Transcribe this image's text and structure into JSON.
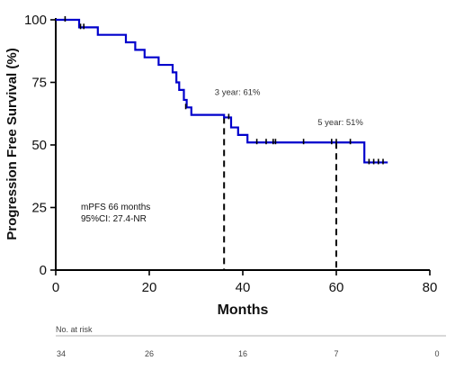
{
  "chart_data": {
    "type": "line",
    "subtype": "kaplan-meier",
    "title": "",
    "xlabel": "Months",
    "ylabel": "Progression Free Survival (%)",
    "xlim": [
      0,
      80
    ],
    "ylim": [
      0,
      100
    ],
    "x_ticks": [
      "0",
      "20",
      "40",
      "60",
      "80"
    ],
    "y_ticks": [
      "0",
      "25",
      "50",
      "75",
      "100"
    ],
    "grid": false,
    "series_color": "#0000cc",
    "steps": [
      {
        "x": 0,
        "y": 100
      },
      {
        "x": 5,
        "y": 97
      },
      {
        "x": 9,
        "y": 94
      },
      {
        "x": 15,
        "y": 91
      },
      {
        "x": 17,
        "y": 88
      },
      {
        "x": 19,
        "y": 85
      },
      {
        "x": 22,
        "y": 82
      },
      {
        "x": 25,
        "y": 79
      },
      {
        "x": 25.8,
        "y": 75
      },
      {
        "x": 26.4,
        "y": 72
      },
      {
        "x": 27.4,
        "y": 68
      },
      {
        "x": 28,
        "y": 65
      },
      {
        "x": 29,
        "y": 62
      },
      {
        "x": 36,
        "y": 61
      },
      {
        "x": 37.5,
        "y": 57
      },
      {
        "x": 39,
        "y": 54
      },
      {
        "x": 41,
        "y": 51
      },
      {
        "x": 66,
        "y": 43
      }
    ],
    "end_x": 71,
    "censor_marks": [
      {
        "x": 2,
        "y": 100
      },
      {
        "x": 5.3,
        "y": 97
      },
      {
        "x": 6,
        "y": 97
      },
      {
        "x": 27.8,
        "y": 65
      },
      {
        "x": 37,
        "y": 61
      },
      {
        "x": 43,
        "y": 51
      },
      {
        "x": 45,
        "y": 51
      },
      {
        "x": 46.5,
        "y": 51
      },
      {
        "x": 47,
        "y": 51
      },
      {
        "x": 53,
        "y": 51
      },
      {
        "x": 59,
        "y": 51
      },
      {
        "x": 60,
        "y": 51
      },
      {
        "x": 63,
        "y": 51
      },
      {
        "x": 67,
        "y": 43
      },
      {
        "x": 68,
        "y": 43
      },
      {
        "x": 69,
        "y": 43
      },
      {
        "x": 70,
        "y": 43
      }
    ],
    "reference_lines": [
      {
        "x": 36,
        "y": 61,
        "label": "3 year: 61%",
        "label_x": 34,
        "label_y": 70
      },
      {
        "x": 60,
        "y": 51,
        "label": "5 year: 51%",
        "label_x": 56,
        "label_y": 58
      }
    ],
    "annotations": [
      "mPFS 66 months",
      "95%CI: 27.4-NR"
    ],
    "risk_table": {
      "title": "No. at risk",
      "counts": [
        "34",
        "26",
        "16",
        "7",
        "0"
      ]
    }
  }
}
